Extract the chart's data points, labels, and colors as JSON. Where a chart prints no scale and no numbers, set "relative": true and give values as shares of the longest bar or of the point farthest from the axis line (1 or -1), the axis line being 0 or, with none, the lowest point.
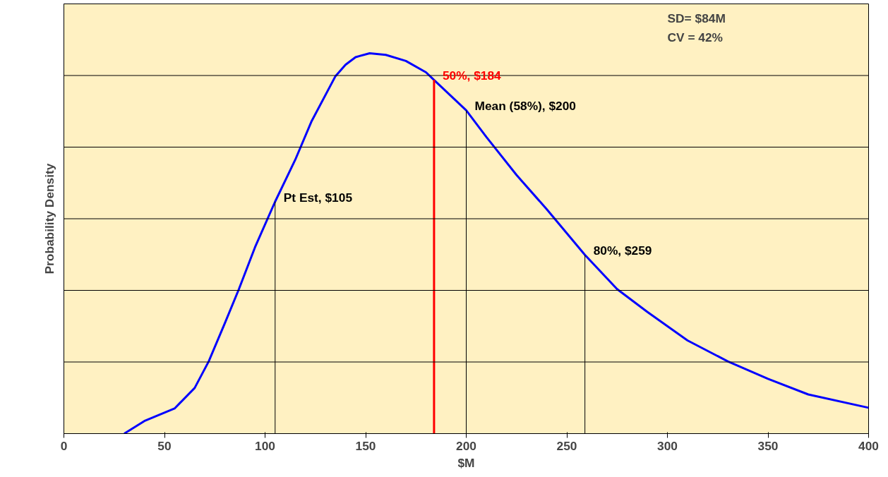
{
  "chart_data": {
    "type": "line",
    "relative": true,
    "xlabel": "$M",
    "ylabel": "Probability Density",
    "xlim": [
      0,
      400
    ],
    "xticks": [
      0,
      50,
      100,
      150,
      200,
      250,
      300,
      350,
      400
    ],
    "grid": "y",
    "marker": "none",
    "line_style": "solid",
    "x": [
      30,
      40,
      55,
      65,
      72,
      80,
      87,
      95,
      105,
      115,
      123,
      135,
      140,
      145,
      152,
      160,
      170,
      180,
      184,
      200,
      210,
      225,
      240,
      259,
      275,
      290,
      310,
      330,
      350,
      370,
      400
    ],
    "series": [
      {
        "color": "#0000ff",
        "values": [
          0,
          0.033,
          0.066,
          0.12,
          0.19,
          0.29,
          0.38,
          0.49,
          0.61,
          0.72,
          0.82,
          0.94,
          0.97,
          0.99,
          1,
          0.996,
          0.98,
          0.95,
          0.93,
          0.85,
          0.78,
          0.68,
          0.59,
          0.47,
          0.38,
          0.32,
          0.245,
          0.19,
          0.144,
          0.103,
          0.068
        ]
      }
    ],
    "ref_lines": [
      {
        "axis": "x",
        "value": 105,
        "label": "Pt Est,  $105",
        "color": "#000000"
      },
      {
        "axis": "x",
        "value": 184,
        "label": "50%,  $184",
        "color": "#ff0000"
      },
      {
        "axis": "x",
        "value": 200,
        "label": "Mean (58%),  $200",
        "color": "#000000"
      },
      {
        "axis": "x",
        "value": 259,
        "label": "80%,  $259",
        "color": "#000000"
      }
    ],
    "annotations": [
      "SD= $84M",
      "CV = 42%"
    ]
  }
}
